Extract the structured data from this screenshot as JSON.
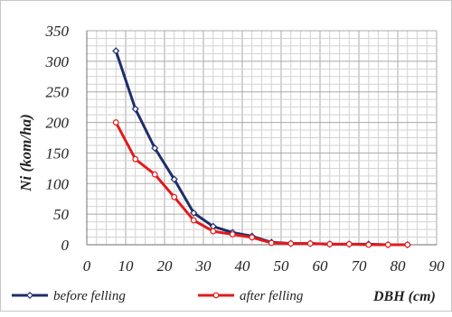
{
  "chart_data": {
    "type": "line",
    "title": "",
    "xlabel": "DBH (cm)",
    "ylabel": "Ni (kom/ha)",
    "xlim": [
      0,
      90
    ],
    "ylim": [
      0,
      350
    ],
    "x_ticks": [
      "0",
      "10",
      "20",
      "30",
      "40",
      "50",
      "60",
      "70",
      "80",
      "90"
    ],
    "y_ticks": [
      "0",
      "50",
      "100",
      "150",
      "200",
      "250",
      "300",
      "350"
    ],
    "grid": true,
    "legend_position": "bottom",
    "series": [
      {
        "name": "before felling",
        "color": "#1f2d6b",
        "marker": "diamond",
        "x": [
          7.5,
          12.5,
          17.5,
          22.5,
          27.5,
          32.5,
          37.5,
          42.5,
          47.5,
          52.5,
          57.5,
          62.5,
          67.5,
          72.5,
          77.5,
          82.5
        ],
        "y": [
          317,
          222,
          158,
          107,
          52,
          30,
          20,
          14,
          4,
          2,
          2,
          1,
          1,
          1,
          0,
          0
        ]
      },
      {
        "name": "after felling",
        "color": "#e31a1c",
        "marker": "circle",
        "x": [
          7.5,
          12.5,
          17.5,
          22.5,
          27.5,
          32.5,
          37.5,
          42.5,
          47.5,
          52.5,
          57.5,
          62.5,
          67.5,
          72.5,
          77.5,
          82.5
        ],
        "y": [
          200,
          140,
          115,
          78,
          40,
          22,
          17,
          12,
          3,
          2,
          2,
          1,
          1,
          0,
          0,
          0
        ]
      }
    ]
  }
}
